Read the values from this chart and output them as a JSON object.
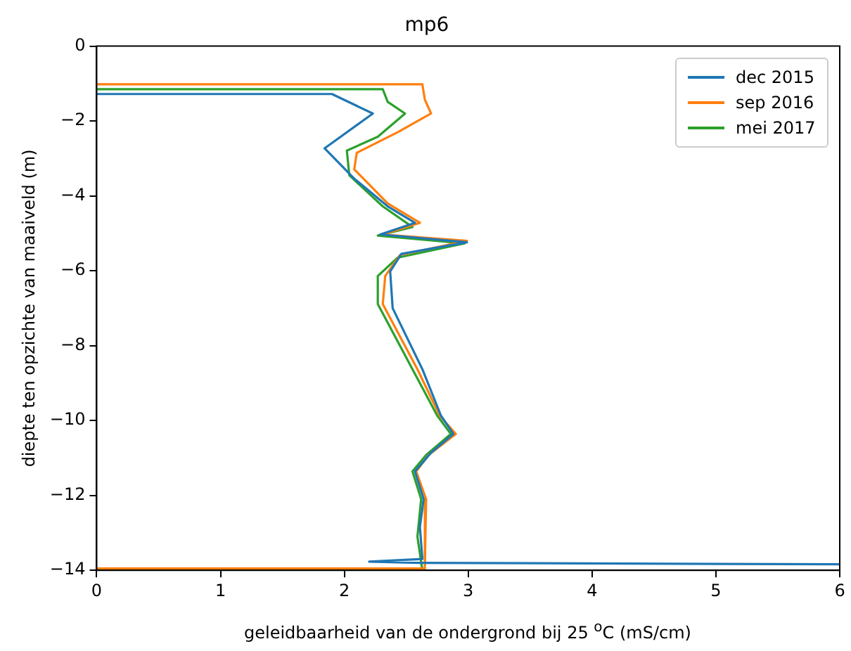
{
  "chart_data": {
    "type": "line",
    "title": "mp6",
    "xlabel": "geleidbaarheid van de ondergrond bij 25 $^{o}$C (mS/cm)",
    "ylabel": "diepte ten opzichte van maaiveld (m)",
    "xlim": [
      0,
      6
    ],
    "xticks": [
      0,
      1,
      2,
      3,
      4,
      5,
      6
    ],
    "ylim": [
      -14,
      0
    ],
    "yticks": [
      0,
      -2,
      -4,
      -6,
      -8,
      -10,
      -12,
      -14
    ],
    "grid": false,
    "legend": "top right",
    "marker": "none",
    "line_style": "solid",
    "series": [
      {
        "name": "dec 2015",
        "color": "#1f77b4",
        "x": [
          0,
          1.9,
          2.23,
          1.84,
          2.08,
          2.35,
          2.57,
          2.29,
          2.99,
          2.46,
          2.37,
          2.39,
          2.63,
          2.78,
          2.88,
          2.7,
          2.57,
          2.64,
          2.61,
          2.63,
          2.2,
          2.6,
          6
        ],
        "values": [
          -1.28,
          -1.28,
          -1.8,
          -2.73,
          -3.54,
          -4.28,
          -4.72,
          -5.03,
          -5.24,
          -5.55,
          -6.02,
          -7.0,
          -8.63,
          -9.87,
          -10.36,
          -10.86,
          -11.36,
          -12.1,
          -12.84,
          -13.7,
          -13.77,
          -13.8,
          -13.84
        ]
      },
      {
        "name": "sep 2016",
        "color": "#ff7f0e",
        "x": [
          0,
          2.63,
          2.65,
          2.7,
          2.43,
          2.1,
          2.08,
          2.35,
          2.61,
          2.31,
          2.99,
          2.45,
          2.33,
          2.31,
          2.59,
          2.77,
          2.9,
          2.68,
          2.58,
          2.66,
          2.65,
          0
        ],
        "values": [
          -1.02,
          -1.02,
          -1.43,
          -1.8,
          -2.3,
          -2.85,
          -3.29,
          -4.2,
          -4.72,
          -5.03,
          -5.2,
          -5.58,
          -6.14,
          -6.89,
          -8.63,
          -9.87,
          -10.36,
          -10.92,
          -11.36,
          -12.1,
          -13.95,
          -13.95
        ]
      },
      {
        "name": "mei 2017",
        "color": "#2ca02c",
        "x": [
          0,
          2.31,
          2.35,
          2.49,
          2.27,
          2.02,
          2.04,
          2.31,
          2.55,
          2.27,
          2.97,
          2.43,
          2.27,
          2.27,
          2.55,
          2.75,
          2.86,
          2.66,
          2.55,
          2.62,
          2.59,
          2.63
        ],
        "values": [
          -1.15,
          -1.15,
          -1.49,
          -1.8,
          -2.42,
          -2.79,
          -3.45,
          -4.28,
          -4.83,
          -5.06,
          -5.27,
          -5.65,
          -6.14,
          -6.89,
          -8.63,
          -9.87,
          -10.36,
          -10.92,
          -11.36,
          -12.1,
          -13.1,
          -14
        ]
      }
    ]
  }
}
